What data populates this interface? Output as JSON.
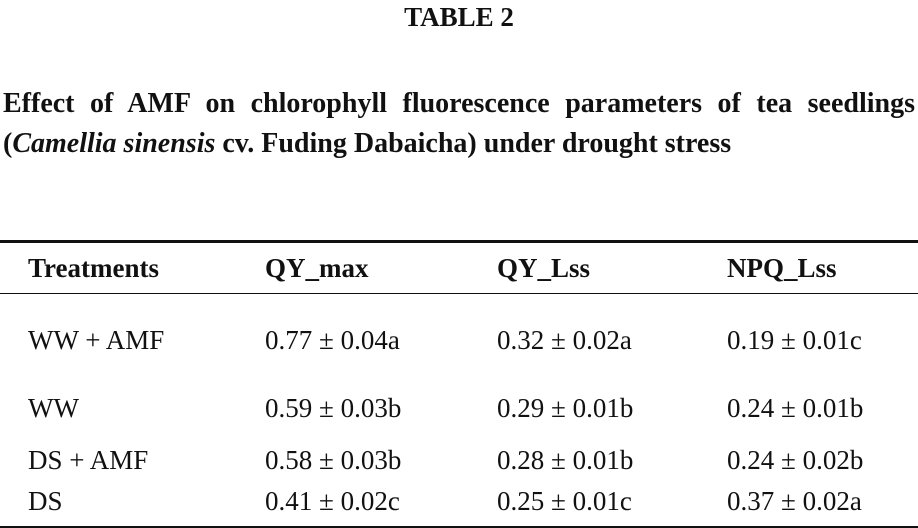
{
  "label": "TABLE 2",
  "caption": [
    "Effect of AMF on chlorophyll fluorescence parameters of tea seedlings (",
    "Camellia sinensis",
    " cv. Fuding Dabaicha) under drought stress"
  ],
  "table": {
    "header": [
      "Treatments",
      "QY_max",
      "QY_Lss",
      "NPQ_Lss"
    ],
    "rows": [
      [
        "WW + AMF",
        "0.77 ± 0.04a",
        "0.32 ± 0.02a",
        "0.19 ± 0.01c"
      ],
      [
        "WW",
        "0.59 ± 0.03b",
        "0.29 ± 0.01b",
        "0.24 ± 0.01b"
      ],
      [
        "DS + AMF",
        "0.58 ± 0.03b",
        "0.28 ± 0.01b",
        "0.24 ± 0.02b"
      ],
      [
        "DS",
        "0.41 ± 0.02c",
        "0.25 ± 0.01c",
        "0.37 ± 0.02a"
      ]
    ]
  }
}
